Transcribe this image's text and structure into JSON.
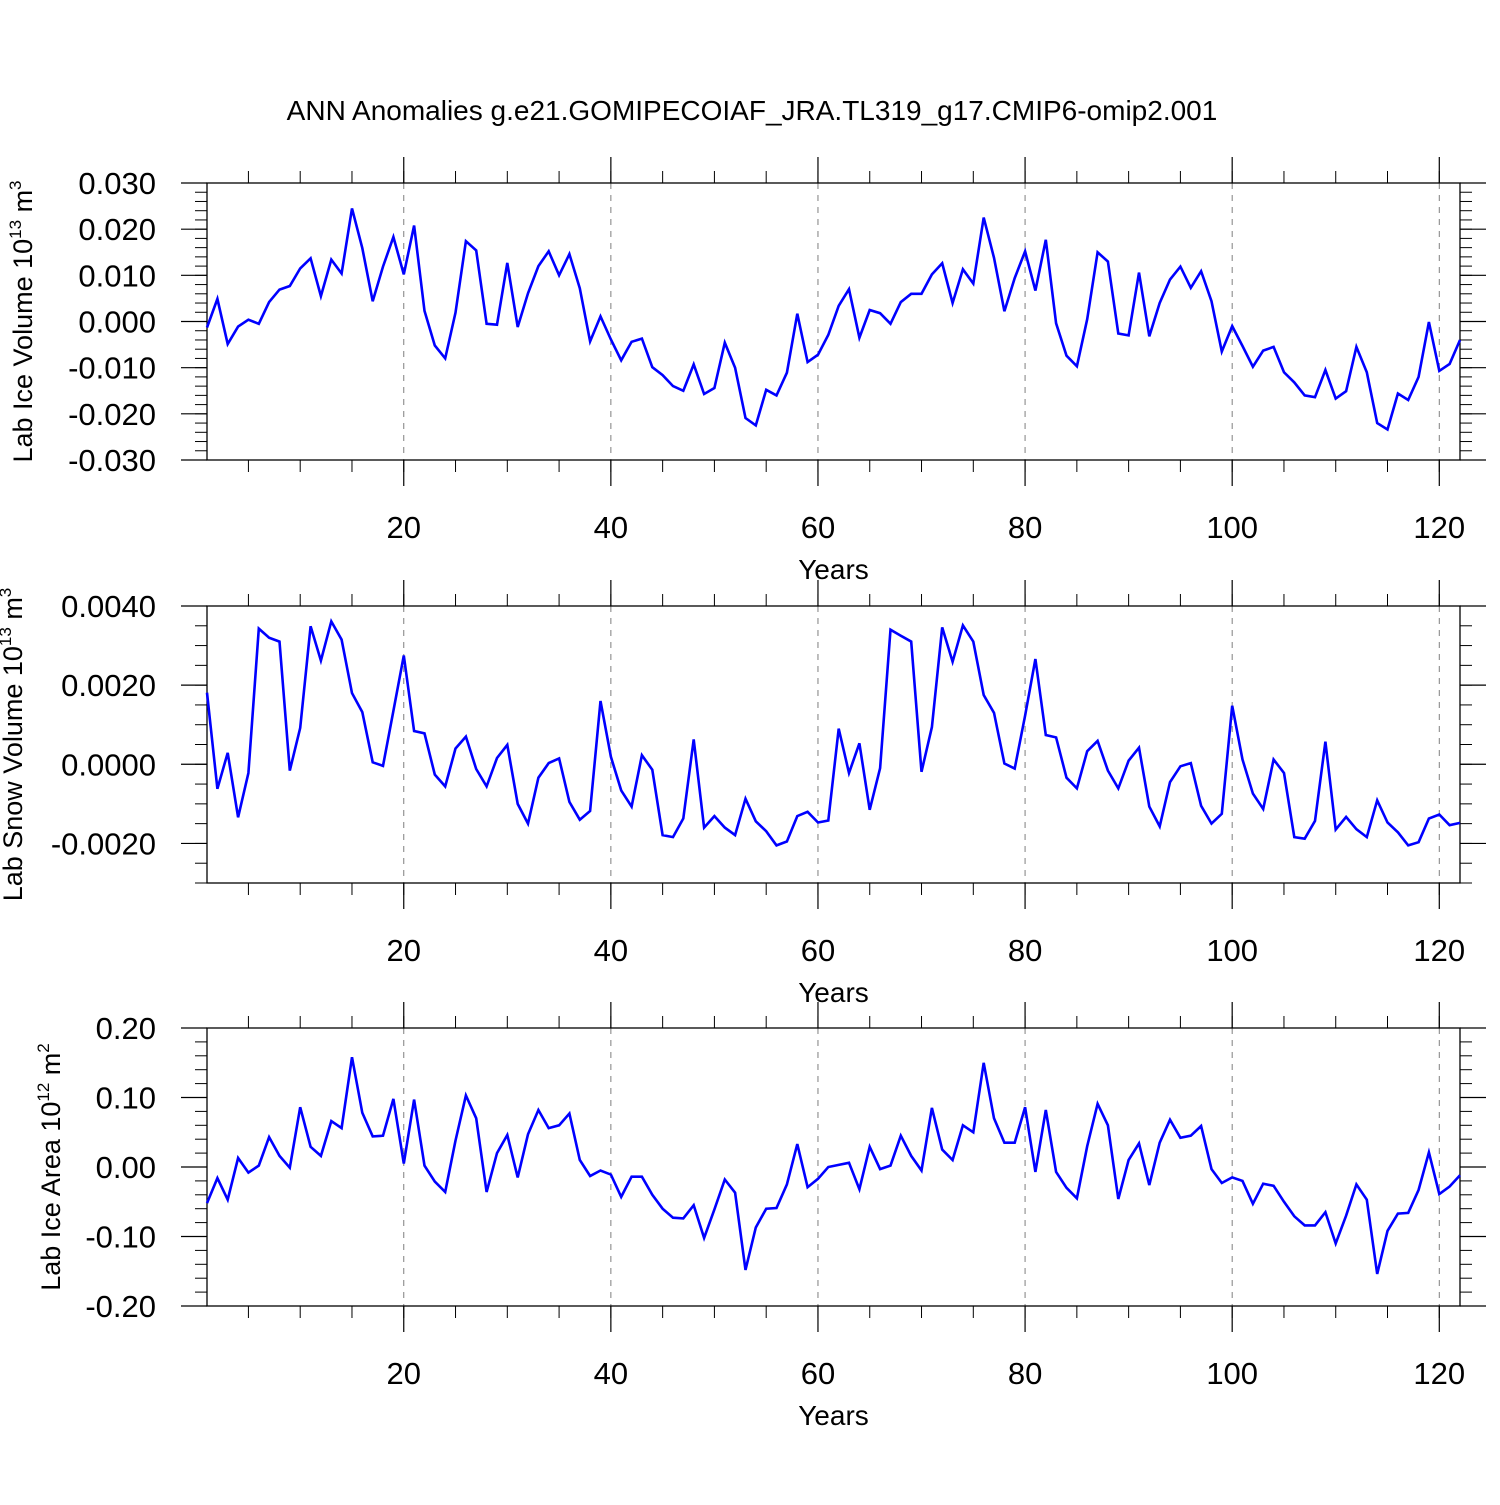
{
  "figure_title": "ANN Anomalies g.e21.GOMIPECOIAF_JRA.TL319_g17.CMIP6-omip2.001",
  "colors": {
    "series": "#0000ff",
    "axis": "#000000",
    "grid": "#7f7f7f"
  },
  "chart_data": [
    {
      "type": "line",
      "title": "ANN Anomalies g.e21.GOMIPECOIAF_JRA.TL319_g17.CMIP6-omip2.001",
      "ylabel_main": "Lab Ice Volume 10",
      "ylabel_exp": "13",
      "ylabel_unit": " m",
      "ylabel_unit_exp": "3",
      "xlabel": "Years",
      "xlim": [
        1,
        122
      ],
      "ylim": [
        -0.03,
        0.03
      ],
      "yticks": [
        -0.03,
        -0.02,
        -0.01,
        0.0,
        0.01,
        0.02,
        0.03
      ],
      "yticklabels": [
        "-0.030",
        "-0.020",
        "-0.010",
        "0.000",
        "0.010",
        "0.020",
        "0.030"
      ],
      "yminor": 0.002,
      "xticks": [
        20,
        40,
        60,
        80,
        100,
        120
      ],
      "xticklabels": [
        "20",
        "40",
        "60",
        "80",
        "100",
        "120"
      ],
      "xminor": 5,
      "vgrid": [
        20,
        40,
        60,
        80,
        100,
        120
      ],
      "x_start": 1,
      "values": [
        -0.0013,
        0.0049,
        -0.0049,
        -0.0011,
        0.0004,
        -0.0005,
        0.0042,
        0.0069,
        0.0077,
        0.0115,
        0.0137,
        0.0055,
        0.0134,
        0.0104,
        0.0245,
        0.0159,
        0.0044,
        0.0119,
        0.0183,
        0.0102,
        0.0208,
        0.0023,
        -0.0052,
        -0.008,
        0.0019,
        0.0174,
        0.0154,
        -0.0005,
        -0.0007,
        0.0127,
        -0.0012,
        0.0061,
        0.012,
        0.0152,
        0.01,
        0.0146,
        0.0072,
        -0.0043,
        0.0011,
        -0.0039,
        -0.0084,
        -0.0044,
        -0.0037,
        -0.0099,
        -0.0116,
        -0.014,
        -0.015,
        -0.0093,
        -0.0157,
        -0.0144,
        -0.0046,
        -0.01,
        -0.0209,
        -0.0225,
        -0.0148,
        -0.016,
        -0.0111,
        0.0017,
        -0.0088,
        -0.0072,
        -0.0029,
        0.0034,
        0.007,
        -0.0035,
        0.0025,
        0.0018,
        -0.0005,
        0.0042,
        0.006,
        0.006,
        0.0102,
        0.0126,
        0.004,
        0.0113,
        0.0082,
        0.0225,
        0.0138,
        0.0022,
        0.0094,
        0.0152,
        0.0067,
        0.0177,
        -0.0004,
        -0.0074,
        -0.0097,
        0.0005,
        0.015,
        0.013,
        -0.0026,
        -0.003,
        0.0106,
        -0.0032,
        0.004,
        0.0091,
        0.0119,
        0.0073,
        0.0109,
        0.0044,
        -0.0065,
        -0.001,
        -0.0053,
        -0.0098,
        -0.0063,
        -0.0055,
        -0.011,
        -0.0132,
        -0.016,
        -0.0164,
        -0.0105,
        -0.0167,
        -0.0151,
        -0.0055,
        -0.011,
        -0.022,
        -0.0234,
        -0.0156,
        -0.017,
        -0.012,
        -0.0001,
        -0.0107,
        -0.0092,
        -0.004
      ]
    },
    {
      "type": "line",
      "ylabel_main": "Lab Snow Volume 10",
      "ylabel_exp": "13",
      "ylabel_unit": " m",
      "ylabel_unit_exp": "3",
      "xlabel": "Years",
      "xlim": [
        1,
        122
      ],
      "ylim": [
        -0.003,
        0.004
      ],
      "yticks": [
        -0.002,
        0.0,
        0.002,
        0.004
      ],
      "yticklabels": [
        "-0.0020",
        "0.0000",
        "0.0020",
        "0.0040"
      ],
      "yminor": 0.0005,
      "xticks": [
        20,
        40,
        60,
        80,
        100,
        120
      ],
      "xticklabels": [
        "20",
        "40",
        "60",
        "80",
        "100",
        "120"
      ],
      "xminor": 5,
      "vgrid": [
        20,
        40,
        60,
        80,
        100,
        120
      ],
      "x_start": 1,
      "values": [
        0.00181,
        -0.00062,
        0.00029,
        -0.00134,
        -0.00022,
        0.00343,
        0.0032,
        0.0031,
        -0.00016,
        0.00092,
        0.00349,
        0.00262,
        0.00361,
        0.00315,
        0.0018,
        0.00132,
        5e-05,
        -4e-05,
        0.00135,
        0.00275,
        0.00084,
        0.00078,
        -0.00026,
        -0.00056,
        0.0004,
        0.0007,
        -0.00012,
        -0.00056,
        0.00016,
        0.00049,
        -0.001,
        -0.0015,
        -0.00034,
        3e-05,
        0.00015,
        -0.00095,
        -0.0014,
        -0.00118,
        0.0016,
        0.00019,
        -0.00066,
        -0.00107,
        0.00023,
        -0.00014,
        -0.00179,
        -0.00184,
        -0.00137,
        0.00063,
        -0.0016,
        -0.00131,
        -0.0016,
        -0.00179,
        -0.00087,
        -0.00144,
        -0.00169,
        -0.00205,
        -0.00195,
        -0.00131,
        -0.0012,
        -0.00147,
        -0.00142,
        0.0009,
        -0.00022,
        0.00053,
        -0.00115,
        -0.0001,
        0.0034,
        0.00325,
        0.0031,
        -0.00019,
        0.00094,
        0.00346,
        0.00259,
        0.00351,
        0.0031,
        0.00175,
        0.0013,
        2e-05,
        -0.00011,
        0.00123,
        0.00266,
        0.00074,
        0.00068,
        -0.00034,
        -0.00061,
        0.00033,
        0.00059,
        -0.00016,
        -0.00061,
        9e-05,
        0.00042,
        -0.00107,
        -0.00157,
        -0.00045,
        -5e-05,
        3e-05,
        -0.00105,
        -0.0015,
        -0.00125,
        0.00148,
        0.00012,
        -0.00074,
        -0.00113,
        0.00012,
        -0.00022,
        -0.00184,
        -0.00188,
        -0.00143,
        0.00057,
        -0.00165,
        -0.00133,
        -0.00164,
        -0.00184,
        -0.00091,
        -0.00147,
        -0.00172,
        -0.00205,
        -0.00197,
        -0.00137,
        -0.00127,
        -0.00154,
        -0.00148
      ]
    },
    {
      "type": "line",
      "ylabel_main": "Lab Ice Area 10",
      "ylabel_exp": "12",
      "ylabel_unit": " m",
      "ylabel_unit_exp": "2",
      "xlabel": "Years",
      "xlim": [
        1,
        122
      ],
      "ylim": [
        -0.2,
        0.2
      ],
      "yticks": [
        -0.2,
        -0.1,
        0.0,
        0.1,
        0.2
      ],
      "yticklabels": [
        "-0.20",
        "-0.10",
        "0.00",
        "0.10",
        "0.20"
      ],
      "yminor": 0.02,
      "xticks": [
        20,
        40,
        60,
        80,
        100,
        120
      ],
      "xticklabels": [
        "20",
        "40",
        "60",
        "80",
        "100",
        "120"
      ],
      "xminor": 5,
      "vgrid": [
        20,
        40,
        60,
        80,
        100,
        120
      ],
      "x_start": 1,
      "values": [
        -0.052,
        -0.016,
        -0.047,
        0.013,
        -0.008,
        0.002,
        0.043,
        0.016,
        -0.001,
        0.086,
        0.029,
        0.016,
        0.066,
        0.056,
        0.158,
        0.078,
        0.044,
        0.045,
        0.098,
        0.005,
        0.097,
        0.002,
        -0.021,
        -0.036,
        0.038,
        0.103,
        0.07,
        -0.036,
        0.02,
        0.046,
        -0.015,
        0.047,
        0.082,
        0.056,
        0.06,
        0.077,
        0.01,
        -0.013,
        -0.005,
        -0.011,
        -0.043,
        -0.014,
        -0.014,
        -0.04,
        -0.06,
        -0.073,
        -0.074,
        -0.055,
        -0.102,
        -0.061,
        -0.018,
        -0.037,
        -0.148,
        -0.087,
        -0.06,
        -0.059,
        -0.025,
        0.033,
        -0.029,
        -0.017,
        0.0,
        0.003,
        0.006,
        -0.032,
        0.029,
        -0.003,
        0.002,
        0.045,
        0.016,
        -0.005,
        0.085,
        0.025,
        0.01,
        0.06,
        0.05,
        0.15,
        0.07,
        0.035,
        0.035,
        0.086,
        -0.007,
        0.082,
        -0.007,
        -0.03,
        -0.045,
        0.03,
        0.091,
        0.06,
        -0.046,
        0.01,
        0.034,
        -0.026,
        0.035,
        0.068,
        0.042,
        0.045,
        0.059,
        -0.003,
        -0.023,
        -0.015,
        -0.02,
        -0.053,
        -0.024,
        -0.027,
        -0.05,
        -0.071,
        -0.084,
        -0.084,
        -0.065,
        -0.11,
        -0.07,
        -0.025,
        -0.047,
        -0.154,
        -0.092,
        -0.067,
        -0.066,
        -0.033,
        0.021,
        -0.039,
        -0.028,
        -0.012
      ]
    }
  ]
}
